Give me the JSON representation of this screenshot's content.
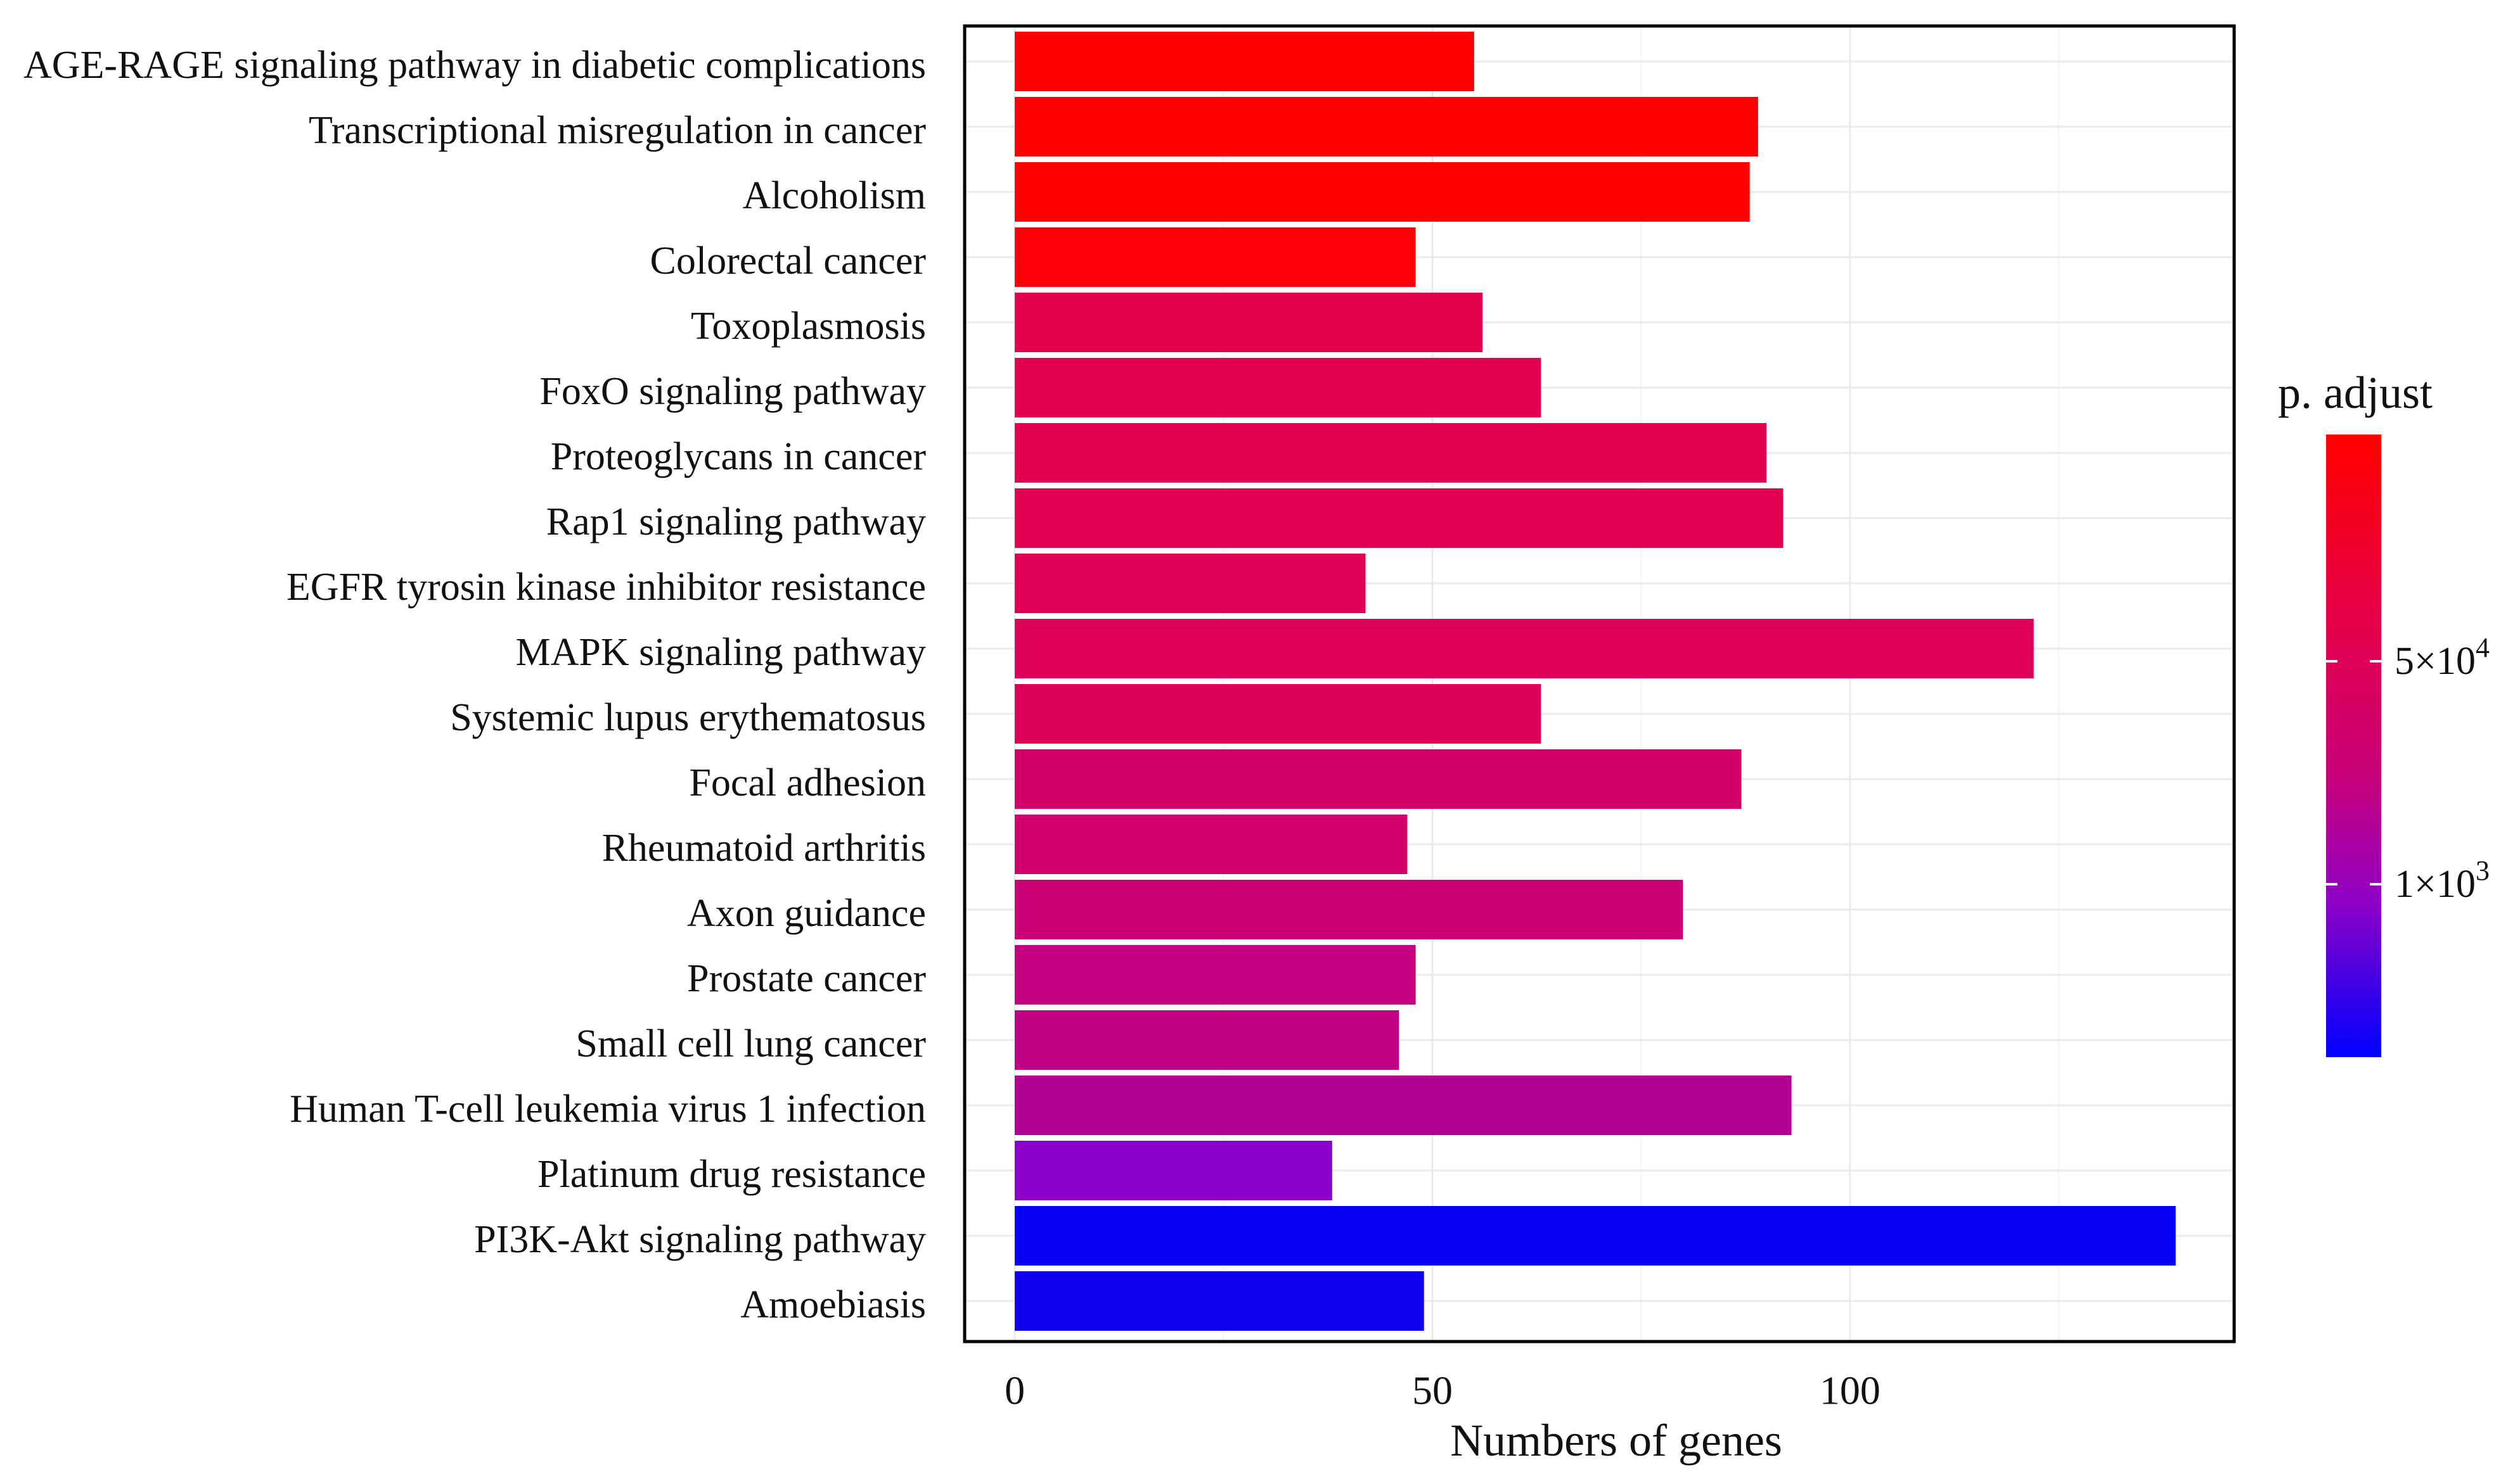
{
  "chart_data": {
    "type": "bar",
    "orientation": "horizontal",
    "xlabel": "Numbers of genes",
    "xlim": [
      -6,
      146
    ],
    "x_ticks": [
      0,
      50,
      100
    ],
    "x_tick_labels": [
      "0",
      "50",
      "100"
    ],
    "x_minor_gridlines": [
      25,
      75,
      125
    ],
    "grid": true,
    "categories": [
      "AGE-RAGE signaling pathway in diabetic complications",
      "Transcriptional misregulation in cancer",
      "Alcoholism",
      "Colorectal cancer",
      "Toxoplasmosis",
      "FoxO signaling pathway",
      "Proteoglycans in cancer",
      "Rap1 signaling pathway",
      "EGFR tyrosin kinase inhibitor resistance",
      "MAPK signaling pathway",
      "Systemic lupus erythematosus",
      "Focal adhesion",
      "Rheumatoid arthritis",
      "Axon guidance",
      "Prostate cancer",
      "Small cell lung cancer",
      "Human T-cell leukemia virus 1 infection",
      "Platinum drug resistance",
      "PI3K-Akt signaling pathway",
      "Amoebiasis"
    ],
    "values": [
      55,
      89,
      88,
      48,
      56,
      63,
      90,
      92,
      42,
      122,
      63,
      87,
      47,
      80,
      48,
      46,
      93,
      38,
      139,
      49
    ],
    "colors": [
      "#FF0000",
      "#FF0000",
      "#FF0000",
      "#FC0007",
      "#E5004B",
      "#E30050",
      "#E20051",
      "#E10053",
      "#DF0056",
      "#DE0058",
      "#DC005A",
      "#D40067",
      "#D1006C",
      "#CB0075",
      "#C3007F",
      "#BF0084",
      "#B20093",
      "#8C00CB",
      "#0800F6",
      "#0F00EF"
    ],
    "legend": {
      "type": "colorbar",
      "title": "p. adjust",
      "position": "right",
      "gradient_colors": [
        "#FF0000",
        "#E5004A",
        "#C8007A",
        "#8F00C5",
        "#2A00EE",
        "#0000FF"
      ],
      "tick_labels": [
        {
          "base": "5×10",
          "exponent": "4"
        },
        {
          "base": "1×10",
          "exponent": "3"
        }
      ]
    }
  }
}
